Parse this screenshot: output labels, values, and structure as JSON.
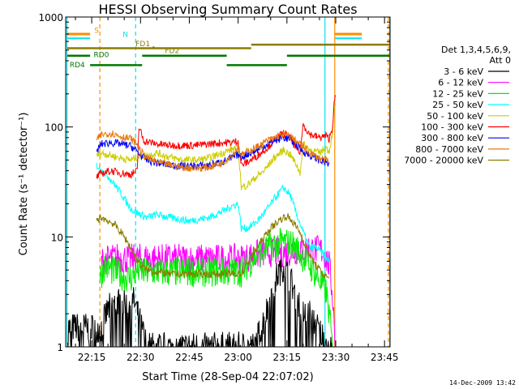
{
  "chart_data": {
    "type": "line",
    "title": "HESSI Observing Summary Count Rates",
    "xlabel": "Start Time (28-Sep-04 22:07:02)",
    "ylabel": "Count Rate (s⁻¹ detector⁻¹)",
    "yscale": "log",
    "ylim": [
      1,
      1000
    ],
    "xlim_minutes": [
      0,
      99.7
    ],
    "x_ticks": [
      {
        "m": 8,
        "label": "22:15"
      },
      {
        "m": 23,
        "label": "22:30"
      },
      {
        "m": 38,
        "label": "22:45"
      },
      {
        "m": 53,
        "label": "23:00"
      },
      {
        "m": 68,
        "label": "23:15"
      },
      {
        "m": 83,
        "label": "23:30"
      },
      {
        "m": 98,
        "label": "23:45"
      }
    ],
    "y_ticks": [
      {
        "v": 1,
        "label": "1"
      },
      {
        "v": 10,
        "label": "10"
      },
      {
        "v": 100,
        "label": "100"
      },
      {
        "v": 1000,
        "label": "1000"
      }
    ],
    "legend_header": [
      "Det 1,3,4,5,6,9,",
      "Att 0"
    ],
    "legend_position": "right",
    "footer_date": "14-Dec-2009 13:42",
    "flags": {
      "S": "S",
      "N": "N",
      "FD1": "FD1",
      "FD2": "FD2",
      "RD0": "RD0",
      "RD4": "RD4"
    },
    "colors": {
      "saa": "#ff8c00",
      "night": "#00e5ee",
      "flare": "#8b7d00",
      "decim": "#007800"
    },
    "series": [
      {
        "name": "3 - 6 keV",
        "color": "#000000",
        "x": [
          0.6,
          8.5,
          11,
          13,
          16,
          18,
          21,
          25,
          30,
          37,
          43,
          49,
          54,
          58,
          61,
          63,
          65,
          67,
          69,
          71,
          73,
          75,
          78,
          81,
          82
        ],
        "y": [
          1.5,
          1.5,
          1.5,
          2.2,
          2.6,
          2.4,
          2.6,
          1,
          1,
          1,
          1,
          1,
          1,
          1,
          1.8,
          2.8,
          4.5,
          5.5,
          4.2,
          2.8,
          2,
          2,
          1.4,
          1,
          1
        ]
      },
      {
        "name": "6 - 12 keV",
        "color": "#ff00ff",
        "x": [
          11,
          13,
          16,
          20,
          25,
          32,
          40,
          48,
          54,
          58,
          62,
          65,
          68,
          71,
          75,
          79,
          81,
          82,
          83
        ],
        "y": [
          6,
          6.2,
          6.5,
          6.3,
          6.4,
          6.3,
          6.3,
          6.3,
          6.3,
          6.8,
          7.3,
          7.2,
          7.3,
          7.6,
          7.8,
          7.5,
          5.5,
          3,
          1
        ]
      },
      {
        "name": "12 - 25 keV",
        "color": "#00ee00",
        "x": [
          10.5,
          12,
          14,
          17,
          20,
          22,
          24,
          30,
          40,
          48,
          54,
          58,
          61,
          64,
          67,
          70,
          73,
          76,
          80,
          81,
          82
        ],
        "y": [
          4.2,
          5.5,
          5,
          4.5,
          4.2,
          5,
          4.8,
          4.8,
          4.8,
          4.8,
          4.8,
          6.5,
          7.5,
          8.5,
          9,
          8.5,
          6.5,
          5,
          3.2,
          2,
          1
        ]
      },
      {
        "name": "25 - 50 keV",
        "color": "#00ffff",
        "x": [
          9.5,
          11,
          13,
          15,
          17,
          19,
          21,
          23,
          25,
          28,
          32,
          38,
          44,
          48,
          51,
          53,
          54,
          56,
          59,
          62,
          65,
          67,
          69,
          71,
          73,
          75,
          77,
          79,
          81
        ],
        "y": [
          45,
          40,
          36,
          30,
          25,
          20,
          17,
          16,
          15,
          16,
          15,
          14,
          15,
          17,
          19,
          20,
          12,
          12,
          14,
          18,
          24,
          28,
          24,
          16,
          11,
          8,
          8,
          7,
          6
        ]
      },
      {
        "name": "50 - 100 keV",
        "color": "#cdcd00",
        "x": [
          9.5,
          11,
          14,
          17,
          20,
          22,
          23,
          25,
          28,
          32,
          36,
          40,
          44,
          48,
          51,
          53,
          54,
          56,
          58,
          61,
          64,
          67,
          69,
          71,
          72,
          73,
          75,
          78,
          80,
          81,
          82,
          82.5,
          83
        ],
        "y": [
          55,
          58,
          55,
          52,
          50,
          53,
          55,
          55,
          58,
          53,
          50,
          50,
          52,
          58,
          62,
          67,
          28,
          30,
          34,
          40,
          52,
          62,
          56,
          45,
          38,
          70,
          62,
          58,
          65,
          60,
          90,
          140,
          160
        ]
      },
      {
        "name": "100 - 300 keV",
        "color": "#ff0000",
        "x": [
          9.5,
          11,
          14,
          17,
          20,
          22,
          22.5,
          24,
          28,
          32,
          36,
          40,
          44,
          48,
          51,
          53,
          54,
          56,
          59,
          62,
          65,
          67,
          69,
          71,
          72,
          73,
          75,
          78,
          80,
          81,
          82,
          82.5,
          83
        ],
        "y": [
          35,
          38,
          40,
          38,
          37,
          40,
          100,
          75,
          70,
          68,
          68,
          68,
          70,
          72,
          72,
          75,
          45,
          48,
          55,
          65,
          80,
          88,
          80,
          62,
          58,
          105,
          86,
          80,
          83,
          78,
          100,
          160,
          190
        ]
      },
      {
        "name": "300 - 800 keV",
        "color": "#0000ff",
        "x": [
          9.5,
          11,
          14,
          17,
          20,
          22,
          23,
          25,
          28,
          32,
          36,
          40,
          44,
          48,
          51,
          53,
          54,
          56,
          59,
          62,
          65,
          67,
          69,
          71,
          73,
          75,
          78,
          80,
          81
        ],
        "y": [
          60,
          70,
          72,
          70,
          67,
          60,
          55,
          50,
          47,
          45,
          44,
          44,
          45,
          48,
          52,
          56,
          53,
          57,
          62,
          70,
          77,
          80,
          77,
          68,
          60,
          55,
          50,
          47,
          46
        ]
      },
      {
        "name": "800 - 7000 keV",
        "color": "#e8780a",
        "x": [
          9.5,
          11,
          14,
          17,
          20,
          22,
          23,
          25,
          28,
          32,
          36,
          40,
          44,
          48,
          51,
          53,
          54,
          56,
          59,
          62,
          65,
          67,
          69,
          71,
          73,
          75,
          78,
          80,
          81
        ],
        "y": [
          75,
          85,
          88,
          82,
          78,
          70,
          60,
          52,
          48,
          45,
          43,
          42,
          43,
          47,
          55,
          65,
          55,
          60,
          66,
          75,
          82,
          85,
          82,
          74,
          66,
          58,
          52,
          50,
          48
        ]
      },
      {
        "name": "7000 - 20000 keV",
        "color": "#8b7d00",
        "x": [
          9.5,
          11,
          13,
          15,
          17,
          19,
          21,
          23,
          25,
          28,
          32,
          40,
          48,
          54,
          57,
          60,
          63,
          66,
          68,
          70,
          72,
          74,
          76,
          79,
          81
        ],
        "y": [
          14,
          15,
          14,
          13,
          11,
          9,
          7,
          5.5,
          5,
          4.8,
          4.6,
          4.6,
          4.6,
          4.6,
          6.5,
          9,
          12,
          14.5,
          15.5,
          13.5,
          11,
          8,
          6,
          4.6,
          4.2
        ]
      }
    ]
  }
}
